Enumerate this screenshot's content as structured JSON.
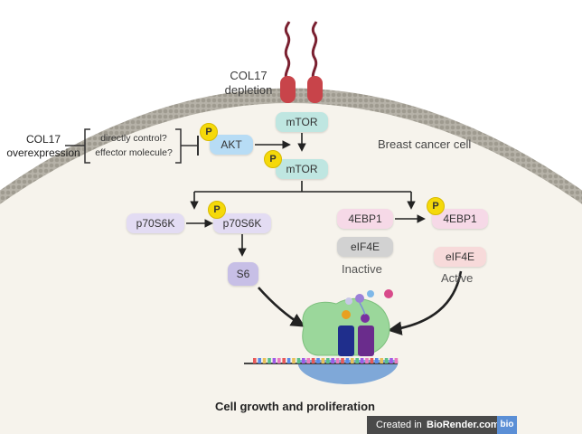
{
  "labels": {
    "col17_depletion_line1": "COL17",
    "col17_depletion_line2": "depletion",
    "col17_over_line1": "COL17",
    "col17_over_line2": "overexpression",
    "question1": "directly control?",
    "question2": "effector molecule?",
    "cell_name": "Breast cancer cell",
    "inactive": "Inactive",
    "active": "Active",
    "outcome": "Cell growth and proliferation",
    "phospho": "P"
  },
  "nodes": {
    "akt": "AKT",
    "mtor": "mTOR",
    "mtor_p": "mTOR",
    "p70s6k": "p70S6K",
    "p70s6k_p": "p70S6K",
    "s6": "S6",
    "4ebp1": "4EBP1",
    "4ebp1_p": "4EBP1",
    "eif4e_bound": "eIF4E",
    "eif4e_free": "eIF4E"
  },
  "badge": {
    "created_in": "Created in",
    "brand": "BioRender.com",
    "logo": "bio"
  },
  "colors": {
    "membrane": "#a8a49a",
    "cell_interior": "#f6f3ec",
    "receptor": "#c8444a",
    "receptor_tail": "#7a2030",
    "akt": "#b7dcf5",
    "mtor": "#bfe6e1",
    "p70s6k": "#e3dcf3",
    "s6": "#c7bfe6",
    "4ebp1": "#f6d9e7",
    "eif4e": "#f7dada",
    "eif4e_bound": "#d2d2d2",
    "phospho": "#f5d90a",
    "ribosome": "#9bd79b",
    "mrna": "#444444"
  }
}
